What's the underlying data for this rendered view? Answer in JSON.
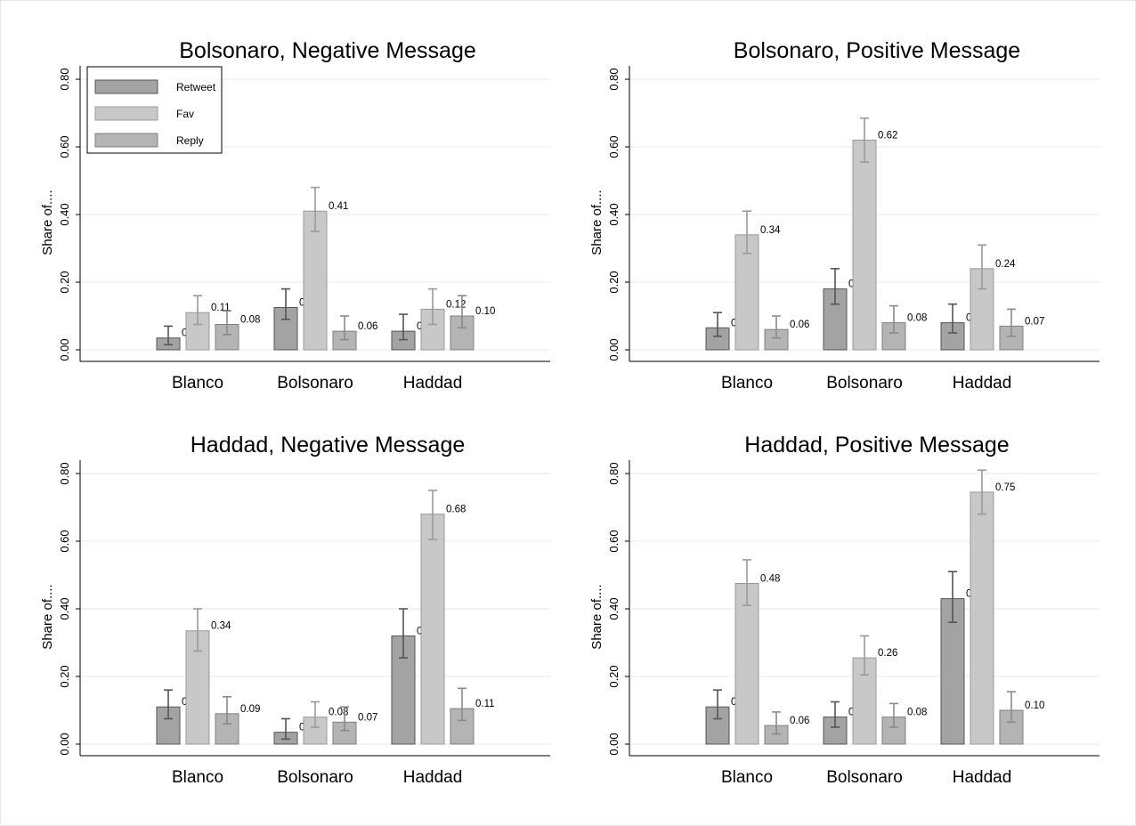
{
  "chart_data": [
    {
      "type": "bar",
      "title": "Bolsonaro, Negative Message",
      "ylabel": "Share of....",
      "ylim": [
        0,
        0.8
      ],
      "yticks": [
        "0.00",
        "0.20",
        "0.40",
        "0.60",
        "0.80"
      ],
      "categories": [
        "Blanco",
        "Bolsonaro",
        "Haddad"
      ],
      "series": [
        {
          "name": "Retweet",
          "values": [
            0.035,
            0.125,
            0.055
          ],
          "labels": [
            "0.04",
            "0.13",
            "0.06"
          ],
          "ci_low": [
            0.015,
            0.09,
            0.03
          ],
          "ci_high": [
            0.07,
            0.18,
            0.105
          ]
        },
        {
          "name": "Fav",
          "values": [
            0.11,
            0.41,
            0.12
          ],
          "labels": [
            "0.11",
            "0.41",
            "0.12"
          ],
          "ci_low": [
            0.075,
            0.35,
            0.075
          ],
          "ci_high": [
            0.16,
            0.48,
            0.18
          ]
        },
        {
          "name": "Reply",
          "values": [
            0.075,
            0.055,
            0.1
          ],
          "labels": [
            "0.08",
            "0.06",
            "0.10"
          ],
          "ci_low": [
            0.045,
            0.03,
            0.065
          ],
          "ci_high": [
            0.115,
            0.1,
            0.16
          ]
        }
      ],
      "legend": {
        "placement": "top-left",
        "entries": [
          "Retweet",
          "Fav",
          "Reply"
        ]
      }
    },
    {
      "type": "bar",
      "title": "Bolsonaro, Positive Message",
      "ylabel": "Share of....",
      "ylim": [
        0,
        0.8
      ],
      "yticks": [
        "0.00",
        "0.20",
        "0.40",
        "0.60",
        "0.80"
      ],
      "categories": [
        "Blanco",
        "Bolsonaro",
        "Haddad"
      ],
      "series": [
        {
          "name": "Retweet",
          "values": [
            0.065,
            0.18,
            0.08
          ],
          "labels": [
            "0.07",
            "0.18",
            "0.08"
          ],
          "ci_low": [
            0.04,
            0.135,
            0.05
          ],
          "ci_high": [
            0.11,
            0.24,
            0.135
          ]
        },
        {
          "name": "Fav",
          "values": [
            0.34,
            0.62,
            0.24
          ],
          "labels": [
            "0.34",
            "0.62",
            "0.24"
          ],
          "ci_low": [
            0.285,
            0.555,
            0.18
          ],
          "ci_high": [
            0.41,
            0.685,
            0.31
          ]
        },
        {
          "name": "Reply",
          "values": [
            0.06,
            0.08,
            0.07
          ],
          "labels": [
            "0.06",
            "0.08",
            "0.07"
          ],
          "ci_low": [
            0.035,
            0.05,
            0.04
          ],
          "ci_high": [
            0.1,
            0.13,
            0.12
          ]
        }
      ]
    },
    {
      "type": "bar",
      "title": "Haddad, Negative Message",
      "ylabel": "Share of....",
      "ylim": [
        0,
        0.8
      ],
      "yticks": [
        "0.00",
        "0.20",
        "0.40",
        "0.60",
        "0.80"
      ],
      "categories": [
        "Blanco",
        "Bolsonaro",
        "Haddad"
      ],
      "series": [
        {
          "name": "Retweet",
          "values": [
            0.11,
            0.035,
            0.32
          ],
          "labels": [
            "0.11",
            "0.04",
            "0.32"
          ],
          "ci_low": [
            0.075,
            0.015,
            0.255
          ],
          "ci_high": [
            0.16,
            0.075,
            0.4
          ]
        },
        {
          "name": "Fav",
          "values": [
            0.335,
            0.08,
            0.68
          ],
          "labels": [
            "0.34",
            "0.08",
            "0.68"
          ],
          "ci_low": [
            0.275,
            0.05,
            0.605
          ],
          "ci_high": [
            0.4,
            0.125,
            0.75
          ]
        },
        {
          "name": "Reply",
          "values": [
            0.09,
            0.065,
            0.105
          ],
          "labels": [
            "0.09",
            "0.07",
            "0.11"
          ],
          "ci_low": [
            0.06,
            0.04,
            0.07
          ],
          "ci_high": [
            0.14,
            0.11,
            0.165
          ]
        }
      ]
    },
    {
      "type": "bar",
      "title": "Haddad, Positive Message",
      "ylabel": "Share of....",
      "ylim": [
        0,
        0.8
      ],
      "yticks": [
        "0.00",
        "0.20",
        "0.40",
        "0.60",
        "0.80"
      ],
      "categories": [
        "Blanco",
        "Bolsonaro",
        "Haddad"
      ],
      "series": [
        {
          "name": "Retweet",
          "values": [
            0.11,
            0.08,
            0.43
          ],
          "labels": [
            "0.11",
            "0.08",
            "0.43"
          ],
          "ci_low": [
            0.075,
            0.05,
            0.36
          ],
          "ci_high": [
            0.16,
            0.125,
            0.51
          ]
        },
        {
          "name": "Fav",
          "values": [
            0.475,
            0.255,
            0.745
          ],
          "labels": [
            "0.48",
            "0.26",
            "0.75"
          ],
          "ci_low": [
            0.41,
            0.205,
            0.68
          ],
          "ci_high": [
            0.545,
            0.32,
            0.81
          ]
        },
        {
          "name": "Reply",
          "values": [
            0.055,
            0.08,
            0.1
          ],
          "labels": [
            "0.06",
            "0.08",
            "0.10"
          ],
          "ci_low": [
            0.03,
            0.05,
            0.065
          ],
          "ci_high": [
            0.095,
            0.12,
            0.155
          ]
        }
      ]
    }
  ],
  "colors": {
    "Retweet": "#a3a3a3",
    "Fav": "#c8c8c8",
    "Reply": "#b4b4b4",
    "gridline": "#e8e8e8",
    "axis": "#000000"
  }
}
